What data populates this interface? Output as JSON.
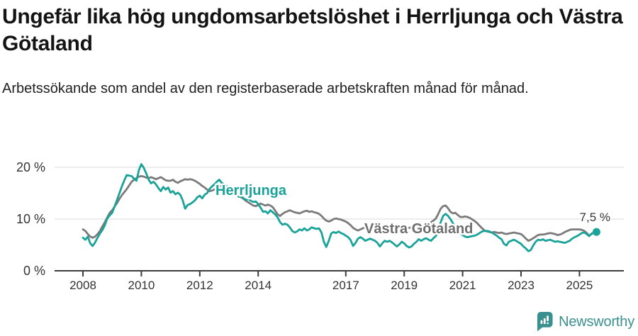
{
  "header": {
    "title": "Ungefär lika hög ungdomsarbetslöshet i Herrljunga och Västra Götaland",
    "subtitle": "Arbetssökande som andel av den registerbaserade arbetskraften månad för månad."
  },
  "footer": {
    "brand": "Newsworthy"
  },
  "colors": {
    "herrljunga": "#1BA39A",
    "vastra_gotaland": "#7B7B7B",
    "series_label_gray": "#6E6E6E",
    "grid": "#E2E2E2",
    "axis": "#3C3C3C",
    "tick_text": "#333333",
    "annotation_text": "#333333",
    "brand_teal": "#3A908E"
  },
  "chart_data": {
    "type": "line",
    "unit": "%",
    "frequency": "monthly",
    "start": "2008-01",
    "end": "2025-08",
    "grid": "horizontal-only",
    "legend_position": "inline-labels",
    "ylim": [
      0,
      22
    ],
    "y_ticks": [
      {
        "value": 0,
        "label": "0 %"
      },
      {
        "value": 10,
        "label": "10 %"
      },
      {
        "value": 20,
        "label": "20 %"
      }
    ],
    "x_ticks": [
      {
        "year": 2008,
        "label": "2008"
      },
      {
        "year": 2010,
        "label": "2010"
      },
      {
        "year": 2012,
        "label": "2012"
      },
      {
        "year": 2014,
        "label": "2014"
      },
      {
        "year": 2017,
        "label": "2017"
      },
      {
        "year": 2019,
        "label": "2019"
      },
      {
        "year": 2021,
        "label": "2021"
      },
      {
        "year": 2023,
        "label": "2023"
      },
      {
        "year": 2025,
        "label": "2025"
      }
    ],
    "end_annotation": {
      "label": "7,5 %",
      "value": 7.5,
      "series": "Herrljunga"
    },
    "series": [
      {
        "name": "Västra Götaland",
        "color": "#7B7B7B",
        "label_color": "#6E6E6E",
        "values": [
          8.0,
          7.7,
          7.1,
          6.6,
          6.4,
          6.6,
          7.1,
          7.7,
          8.6,
          9.4,
          10.3,
          11.2,
          11.7,
          12.4,
          13.1,
          13.9,
          14.6,
          15.2,
          15.8,
          16.5,
          17.2,
          17.6,
          17.9,
          18.2,
          18.3,
          18.2,
          18.0,
          17.9,
          18.1,
          17.9,
          17.7,
          17.9,
          18.1,
          17.8,
          17.5,
          17.4,
          17.4,
          17.6,
          17.2,
          17.0,
          17.3,
          17.5,
          17.7,
          17.6,
          17.7,
          17.6,
          17.4,
          17.1,
          16.8,
          16.4,
          16.1,
          15.7,
          15.4,
          15.5,
          15.7,
          16.0,
          16.2,
          16.4,
          16.2,
          16.1,
          15.9,
          15.6,
          15.2,
          14.9,
          14.5,
          14.2,
          13.9,
          13.5,
          13.2,
          12.9,
          12.6,
          12.5,
          12.7,
          13.0,
          12.8,
          12.6,
          12.8,
          12.6,
          12.3,
          11.6,
          10.9,
          10.6,
          11.0,
          11.3,
          11.5,
          11.7,
          11.5,
          11.3,
          11.2,
          11.1,
          11.3,
          11.5,
          11.6,
          11.4,
          11.5,
          11.3,
          11.2,
          11.0,
          10.6,
          10.1,
          9.7,
          9.5,
          9.7,
          10.0,
          10.1,
          10.0,
          9.9,
          9.7,
          9.5,
          9.2,
          8.8,
          8.3,
          8.0,
          7.8,
          8.0,
          8.2,
          8.4,
          8.5,
          8.4,
          8.5,
          8.5,
          8.4,
          8.2,
          8.3,
          8.4,
          8.2,
          8.1,
          8.0,
          8.1,
          8.2,
          8.3,
          8.2,
          8.3,
          8.2,
          8.3,
          8.4,
          8.5,
          8.6,
          8.7,
          8.7,
          8.8,
          8.9,
          9.1,
          9.4,
          9.7,
          10.1,
          11.0,
          12.0,
          12.5,
          12.6,
          12.1,
          11.4,
          11.1,
          11.2,
          10.8,
          10.4,
          10.4,
          10.5,
          10.4,
          10.2,
          9.9,
          9.6,
          9.2,
          8.7,
          8.2,
          7.8,
          7.6,
          7.5,
          7.4,
          7.5,
          7.4,
          7.3,
          7.4,
          7.2,
          7.1,
          7.2,
          7.3,
          7.4,
          7.3,
          7.2,
          7.1,
          6.7,
          6.2,
          5.8,
          6.0,
          6.3,
          6.6,
          6.9,
          7.0,
          7.0,
          7.1,
          7.2,
          7.3,
          7.2,
          7.1,
          6.9,
          7.0,
          7.2,
          7.5,
          7.7,
          7.9,
          8.0,
          8.0,
          8.0,
          8.0,
          7.9,
          7.7,
          7.3,
          6.8,
          7.1,
          7.4,
          7.3
        ]
      },
      {
        "name": "Herrljunga",
        "color": "#1BA39A",
        "label_color": "#1BA39A",
        "values": [
          6.4,
          6.0,
          6.6,
          5.3,
          4.8,
          5.5,
          6.4,
          7.2,
          7.9,
          8.8,
          10.1,
          10.7,
          11.2,
          12.4,
          13.7,
          15.0,
          16.3,
          17.5,
          18.5,
          18.4,
          18.3,
          17.8,
          17.4,
          19.5,
          20.6,
          19.9,
          18.8,
          17.6,
          16.9,
          17.2,
          16.7,
          16.0,
          15.4,
          16.2,
          15.7,
          16.1,
          15.1,
          15.4,
          14.8,
          15.1,
          14.7,
          13.6,
          12.0,
          12.7,
          12.9,
          13.2,
          13.6,
          14.2,
          14.5,
          14.0,
          14.7,
          15.0,
          15.8,
          16.3,
          16.7,
          17.2,
          17.6,
          17.0,
          16.7,
          16.4,
          16.0,
          15.5,
          15.1,
          14.7,
          14.3,
          14.5,
          14.0,
          13.7,
          13.9,
          13.5,
          13.3,
          13.4,
          12.9,
          12.2,
          11.4,
          11.5,
          11.1,
          11.7,
          11.3,
          10.9,
          10.3,
          9.4,
          8.9,
          9.1,
          8.9,
          8.4,
          7.7,
          7.4,
          7.6,
          8.0,
          7.8,
          8.2,
          7.8,
          8.0,
          8.4,
          8.2,
          8.1,
          8.2,
          7.4,
          5.6,
          4.6,
          5.8,
          7.2,
          7.5,
          7.3,
          7.6,
          7.3,
          7.1,
          6.8,
          6.5,
          5.9,
          4.8,
          5.4,
          6.2,
          6.5,
          6.2,
          5.8,
          6.0,
          6.2,
          6.0,
          5.8,
          5.4,
          4.7,
          5.3,
          5.8,
          5.6,
          5.8,
          5.5,
          5.1,
          4.7,
          5.1,
          5.6,
          5.3,
          4.8,
          4.5,
          4.7,
          5.2,
          5.6,
          6.1,
          5.8,
          6.1,
          6.3,
          6.0,
          5.8,
          6.3,
          6.7,
          8.0,
          9.4,
          10.6,
          11.0,
          10.6,
          10.0,
          9.2,
          8.4,
          7.7,
          7.2,
          6.9,
          6.6,
          6.5,
          6.6,
          6.7,
          6.8,
          7.0,
          7.3,
          7.6,
          7.7,
          7.7,
          7.6,
          7.4,
          7.1,
          6.8,
          6.4,
          6.1,
          5.2,
          4.9,
          5.6,
          5.8,
          6.0,
          5.8,
          5.5,
          5.2,
          4.7,
          4.3,
          3.8,
          4.0,
          4.9,
          5.6,
          6.0,
          5.9,
          6.1,
          5.8,
          5.9,
          6.0,
          5.8,
          5.6,
          5.7,
          5.6,
          5.5,
          5.4,
          5.6,
          5.8,
          6.2,
          6.5,
          6.7,
          7.0,
          7.3,
          7.4,
          7.1,
          6.7,
          7.2,
          7.4,
          7.5
        ]
      }
    ]
  }
}
